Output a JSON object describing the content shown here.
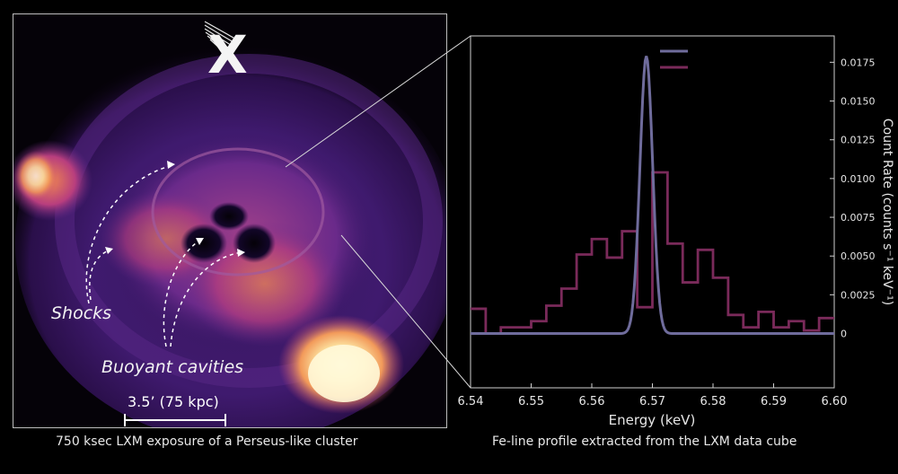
{
  "left": {
    "logo_letter": "X",
    "annotation_shocks": "Shocks",
    "annotation_cavities": "Buoyant cavities",
    "scalebar_label": "3.5’ (75 kpc)",
    "caption": "750 ksec LXM exposure of a Perseus-like cluster"
  },
  "right": {
    "caption": "Fe-line profile extracted from the LXM data cube"
  },
  "colors": {
    "model": "#6f6c9c",
    "data": "#7a2a5a",
    "legend_line_1": "#6f6c9c",
    "legend_line_2": "#7a2a5a"
  },
  "chart_data": {
    "type": "line",
    "xlabel": "Energy (keV)",
    "ylabel": "Count Rate (counts s⁻¹ keV⁻¹)",
    "xlim": [
      6.54,
      6.6
    ],
    "ylim": [
      -0.0035,
      0.0192
    ],
    "x_ticks": [
      "6.54",
      "6.55",
      "6.56",
      "6.57",
      "6.58",
      "6.59",
      "6.60"
    ],
    "y_ticks": [
      "0",
      "0.0025",
      "0.0050",
      "0.0075",
      "0.0100",
      "0.0125",
      "0.0150",
      "0.0175"
    ],
    "y_tick_values": [
      0,
      0.0025,
      0.005,
      0.0075,
      0.01,
      0.0125,
      0.015,
      0.0175
    ],
    "series": [
      {
        "kind": "gaussian",
        "amplitude": 0.0179,
        "center": 6.569,
        "sigma": 0.00105
      },
      {
        "kind": "step",
        "edges": [
          6.54,
          6.5425,
          6.545,
          6.5475,
          6.55,
          6.5525,
          6.555,
          6.5575,
          6.56,
          6.5625,
          6.565,
          6.5675,
          6.57,
          6.5725,
          6.575,
          6.5775,
          6.58,
          6.5825,
          6.585,
          6.5875,
          6.59,
          6.5925,
          6.595,
          6.5975,
          6.6
        ],
        "values": [
          0.0016,
          0.0,
          0.0004,
          0.0004,
          0.0008,
          0.0018,
          0.0029,
          0.0051,
          0.0061,
          0.0049,
          0.0066,
          0.0017,
          0.0104,
          0.0058,
          0.0033,
          0.0054,
          0.0036,
          0.0012,
          0.0004,
          0.0014,
          0.0004,
          0.0008,
          0.0002,
          0.001
        ]
      }
    ]
  }
}
